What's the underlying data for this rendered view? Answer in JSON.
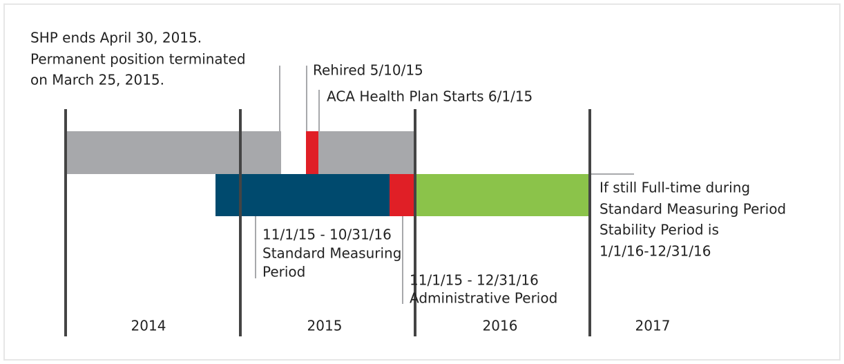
{
  "annotations": {
    "shp": [
      "SHP ends April 30, 2015.",
      "Permanent position terminated",
      "on March 25, 2015."
    ],
    "rehired": [
      "Rehired 5/10/15"
    ],
    "aca": [
      "ACA Health Plan Starts 6/1/15"
    ],
    "measuring": [
      "11/1/15 - 10/31/16",
      "Standard Measuring",
      "Period"
    ],
    "administrative": [
      "11/1/15 - 12/31/16",
      "Administrative Period"
    ],
    "stability": [
      "If still Full-time during",
      "Standard Measuring Period",
      "Stability Period is",
      "1/1/16-12/31/16"
    ]
  },
  "years": [
    "2014",
    "2015",
    "2016",
    "2017"
  ]
}
